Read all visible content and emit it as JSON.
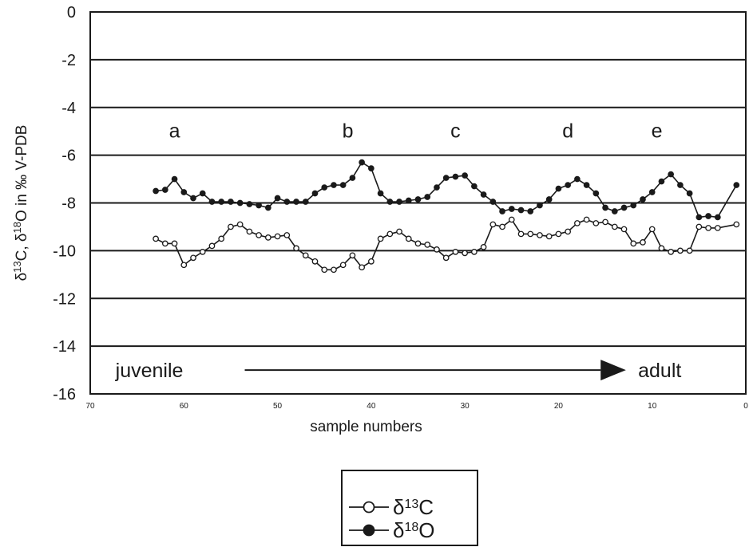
{
  "chart_data": {
    "type": "line",
    "ylabel": "δ13C, δ18O in ‰ V-PDB",
    "xlabel": "sample numbers",
    "xlim": [
      70,
      0
    ],
    "ylim": [
      -16,
      0
    ],
    "x_reversed": true,
    "grid": "horizontal",
    "x_ticks": [
      "70",
      "60",
      "50",
      "40",
      "30",
      "20",
      "10",
      "0"
    ],
    "y_ticks": [
      "0",
      "-2",
      "-4",
      "-6",
      "-8",
      "-10",
      "-12",
      "-14",
      "-16"
    ],
    "annotations": [
      {
        "text": "a",
        "x": 61,
        "y": -5
      },
      {
        "text": "b",
        "x": 42.5,
        "y": -5
      },
      {
        "text": "c",
        "x": 31,
        "y": -5
      },
      {
        "text": "d",
        "x": 19,
        "y": -5
      },
      {
        "text": "e",
        "x": 9.5,
        "y": -5
      }
    ],
    "arrow": {
      "start_label": "juvenile",
      "end_label": "adult"
    },
    "legend": {
      "position": "bottom-center",
      "entries": [
        "δ13C",
        "δ18O"
      ]
    },
    "series": [
      {
        "name": "δ18O",
        "marker": "filled",
        "x": [
          63,
          62,
          61,
          60,
          59,
          58,
          57,
          56,
          55,
          54,
          53,
          52,
          51,
          50,
          49,
          48,
          47,
          46,
          45,
          44,
          43,
          42,
          41,
          40,
          39,
          38,
          37,
          36,
          35,
          34,
          33,
          32,
          31,
          30,
          29,
          28,
          27,
          26,
          25,
          24,
          23,
          22,
          21,
          20,
          19,
          18,
          17,
          16,
          15,
          14,
          13,
          12,
          11,
          10,
          9,
          8,
          7,
          6,
          5,
          4,
          3,
          1
        ],
        "y": [
          -7.5,
          -7.45,
          -7.0,
          -7.55,
          -7.8,
          -7.6,
          -7.95,
          -7.95,
          -7.95,
          -8.0,
          -8.05,
          -8.1,
          -8.2,
          -7.8,
          -7.95,
          -7.95,
          -7.95,
          -7.6,
          -7.35,
          -7.25,
          -7.25,
          -6.95,
          -6.3,
          -6.55,
          -7.6,
          -7.95,
          -7.95,
          -7.9,
          -7.85,
          -7.75,
          -7.35,
          -6.95,
          -6.9,
          -6.85,
          -7.3,
          -7.65,
          -7.95,
          -8.35,
          -8.25,
          -8.3,
          -8.35,
          -8.1,
          -7.85,
          -7.4,
          -7.25,
          -7.0,
          -7.25,
          -7.6,
          -8.2,
          -8.35,
          -8.2,
          -8.1,
          -7.85,
          -7.55,
          -7.1,
          -6.8,
          -7.25,
          -7.6,
          -8.6,
          -8.55,
          -8.6,
          -7.25
        ]
      },
      {
        "name": "δ13C",
        "marker": "open",
        "x": [
          63,
          62,
          61,
          60,
          59,
          58,
          57,
          56,
          55,
          54,
          53,
          52,
          51,
          50,
          49,
          48,
          47,
          46,
          45,
          44,
          43,
          42,
          41,
          40,
          39,
          38,
          37,
          36,
          35,
          34,
          33,
          32,
          31,
          30,
          29,
          28,
          27,
          26,
          25,
          24,
          23,
          22,
          21,
          20,
          19,
          18,
          17,
          16,
          15,
          14,
          13,
          12,
          11,
          10,
          9,
          8,
          7,
          6,
          5,
          4,
          3,
          1
        ],
        "y": [
          -9.5,
          -9.7,
          -9.7,
          -10.6,
          -10.3,
          -10.05,
          -9.8,
          -9.5,
          -9.0,
          -8.9,
          -9.2,
          -9.35,
          -9.45,
          -9.4,
          -9.35,
          -9.9,
          -10.2,
          -10.45,
          -10.8,
          -10.8,
          -10.6,
          -10.2,
          -10.7,
          -10.45,
          -9.5,
          -9.3,
          -9.2,
          -9.5,
          -9.7,
          -9.75,
          -9.95,
          -10.3,
          -10.05,
          -10.1,
          -10.05,
          -9.85,
          -8.9,
          -9.0,
          -8.7,
          -9.3,
          -9.3,
          -9.35,
          -9.4,
          -9.3,
          -9.2,
          -8.85,
          -8.7,
          -8.85,
          -8.8,
          -9.0,
          -9.1,
          -9.7,
          -9.65,
          -9.1,
          -9.9,
          -10.05,
          -10.0,
          -10.0,
          -9.0,
          -9.05,
          -9.05,
          -8.9
        ]
      }
    ]
  }
}
